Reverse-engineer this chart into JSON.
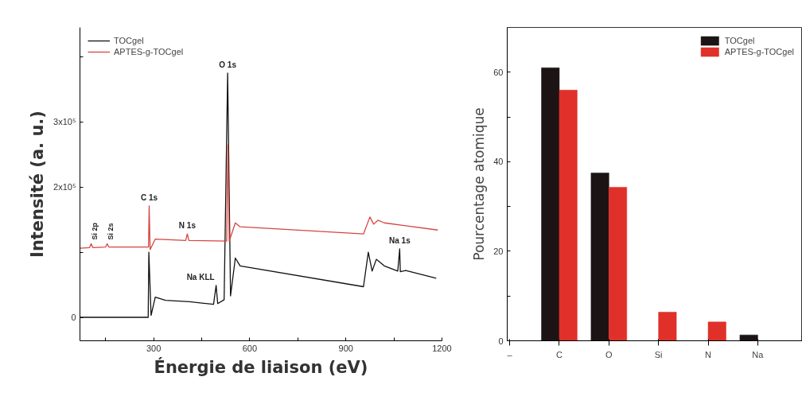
{
  "chart_data": [
    {
      "type": "line",
      "xlabel": "Énergie de liaison (eV)",
      "ylabel": "Intensité (a. u.)",
      "xlim": [
        70,
        1200
      ],
      "xticks": [
        {
          "value": 150,
          "label": null
        },
        300,
        {
          "value": 450,
          "label": null
        },
        600,
        {
          "value": 750,
          "label": null
        },
        900,
        {
          "value": 1050,
          "label": null
        },
        1200
      ],
      "ylim": [
        -36000,
        445000
      ],
      "yticks": [
        {
          "value": 0,
          "label": "0"
        },
        {
          "value": 100000,
          "label": null
        },
        {
          "value": 200000,
          "label": "2x10⁵"
        },
        {
          "value": 300000,
          "label": "3x10⁵"
        },
        {
          "value": 400000,
          "label": null
        }
      ],
      "grid": false,
      "legend": "top left",
      "series": [
        {
          "name": "TOCgel",
          "color": "#111111",
          "x": [
            70,
            280,
            283,
            285,
            292,
            305,
            337,
            412,
            487,
            495,
            500,
            520,
            531,
            540,
            555,
            570,
            955,
            970,
            982,
            995,
            1020,
            1062,
            1068,
            1070,
            1087,
            1182
          ],
          "values": [
            0,
            0,
            0,
            100000,
            3000,
            31000,
            26000,
            24000,
            20000,
            49000,
            21000,
            27000,
            375000,
            33000,
            91000,
            79000,
            47000,
            100000,
            71000,
            89000,
            79000,
            71000,
            105000,
            70000,
            72000,
            60000
          ]
        },
        {
          "name": "APTES-g-TOCgel",
          "color": "#d64541",
          "x": [
            70,
            100,
            105,
            110,
            150,
            155,
            160,
            284,
            286,
            289,
            305,
            400,
            405,
            410,
            528,
            532,
            536,
            555,
            570,
            955,
            975,
            987,
            1000,
            1020,
            1187
          ],
          "values": [
            106000,
            107000,
            113000,
            107000,
            108000,
            113000,
            108000,
            108000,
            171000,
            104000,
            120000,
            118000,
            128000,
            118000,
            117000,
            265000,
            117000,
            145000,
            139000,
            128000,
            154000,
            143000,
            149000,
            145000,
            134000
          ]
        }
      ],
      "annotations": [
        {
          "text": "O 1s",
          "x": 531,
          "y": 375000
        },
        {
          "text": "C 1s",
          "x": 286,
          "y": 171000
        },
        {
          "text": "N 1s",
          "x": 405,
          "y": 128000
        },
        {
          "text": "Si 2p",
          "x": 105,
          "y": 113000
        },
        {
          "text": "Si 2s",
          "x": 155,
          "y": 113000
        },
        {
          "text": "Na KLL",
          "x": 495,
          "y": 49000
        },
        {
          "text": "Na 1s",
          "x": 1068,
          "y": 105000
        }
      ]
    },
    {
      "type": "bar",
      "ylabel": "Pourcentage atomique",
      "categories": [
        "–",
        "C",
        "O",
        "Si",
        "N",
        "Na"
      ],
      "ylim": [
        0,
        70
      ],
      "yticks": [
        0,
        {
          "value": 10,
          "label": null
        },
        20,
        {
          "value": 30,
          "label": null
        },
        40,
        {
          "value": 50,
          "label": null
        },
        60
      ],
      "grid": false,
      "legend": "top right",
      "series": [
        {
          "name": "TOCgel",
          "color": "#1c1414",
          "values": [
            null,
            61,
            37.5,
            null,
            null,
            1.3
          ]
        },
        {
          "name": "APTES-g-TOCgel",
          "color": "#e0302a",
          "values": [
            null,
            56,
            34.3,
            6.4,
            4.2,
            0
          ]
        }
      ]
    }
  ]
}
